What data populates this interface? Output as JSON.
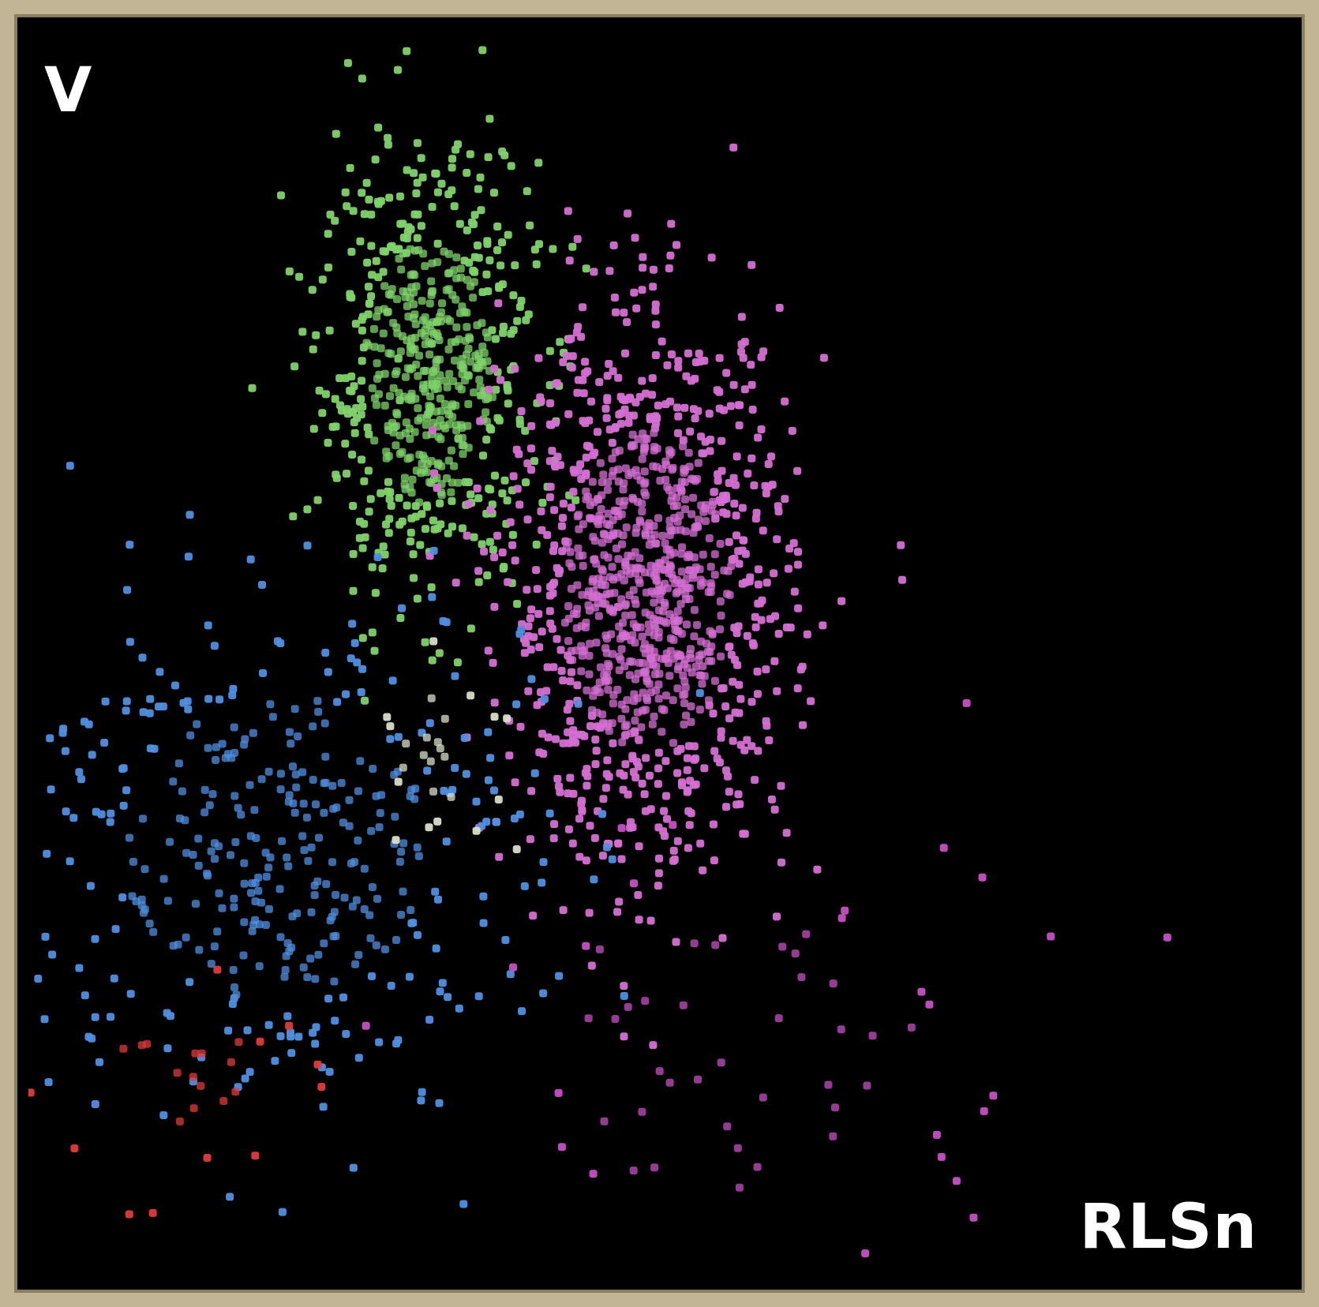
{
  "chart_data": {
    "type": "scatter",
    "title": "",
    "xlabel": "RLSn",
    "ylabel": "V",
    "xlim": [
      0,
      100
    ],
    "ylim": [
      0,
      100
    ],
    "grid": false,
    "legend": "none",
    "background": "#000000",
    "series": [
      {
        "color": "#7fd36a",
        "center": [
          31,
          73
        ],
        "spread": [
          4.2,
          8.5
        ],
        "count": 650
      },
      {
        "color": "#d56fd3",
        "center": [
          48,
          56
        ],
        "spread": [
          5.5,
          10.5
        ],
        "count": 1150
      },
      {
        "color": "#4f8fe0",
        "center": [
          19,
          36
        ],
        "spread": [
          10,
          10
        ],
        "count": 420
      },
      {
        "color": "#d8dfc8",
        "center": [
          32,
          43
        ],
        "spread": [
          3,
          4
        ],
        "count": 25
      },
      {
        "color": "#e23a3a",
        "center": [
          12,
          17
        ],
        "spread": [
          6,
          4
        ],
        "count": 28
      },
      {
        "color": "#c84fc6",
        "center": [
          55,
          20
        ],
        "spread": [
          12,
          10
        ],
        "count": 60
      }
    ]
  },
  "labels": {
    "y_axis": "V",
    "x_axis": "RLSn"
  }
}
